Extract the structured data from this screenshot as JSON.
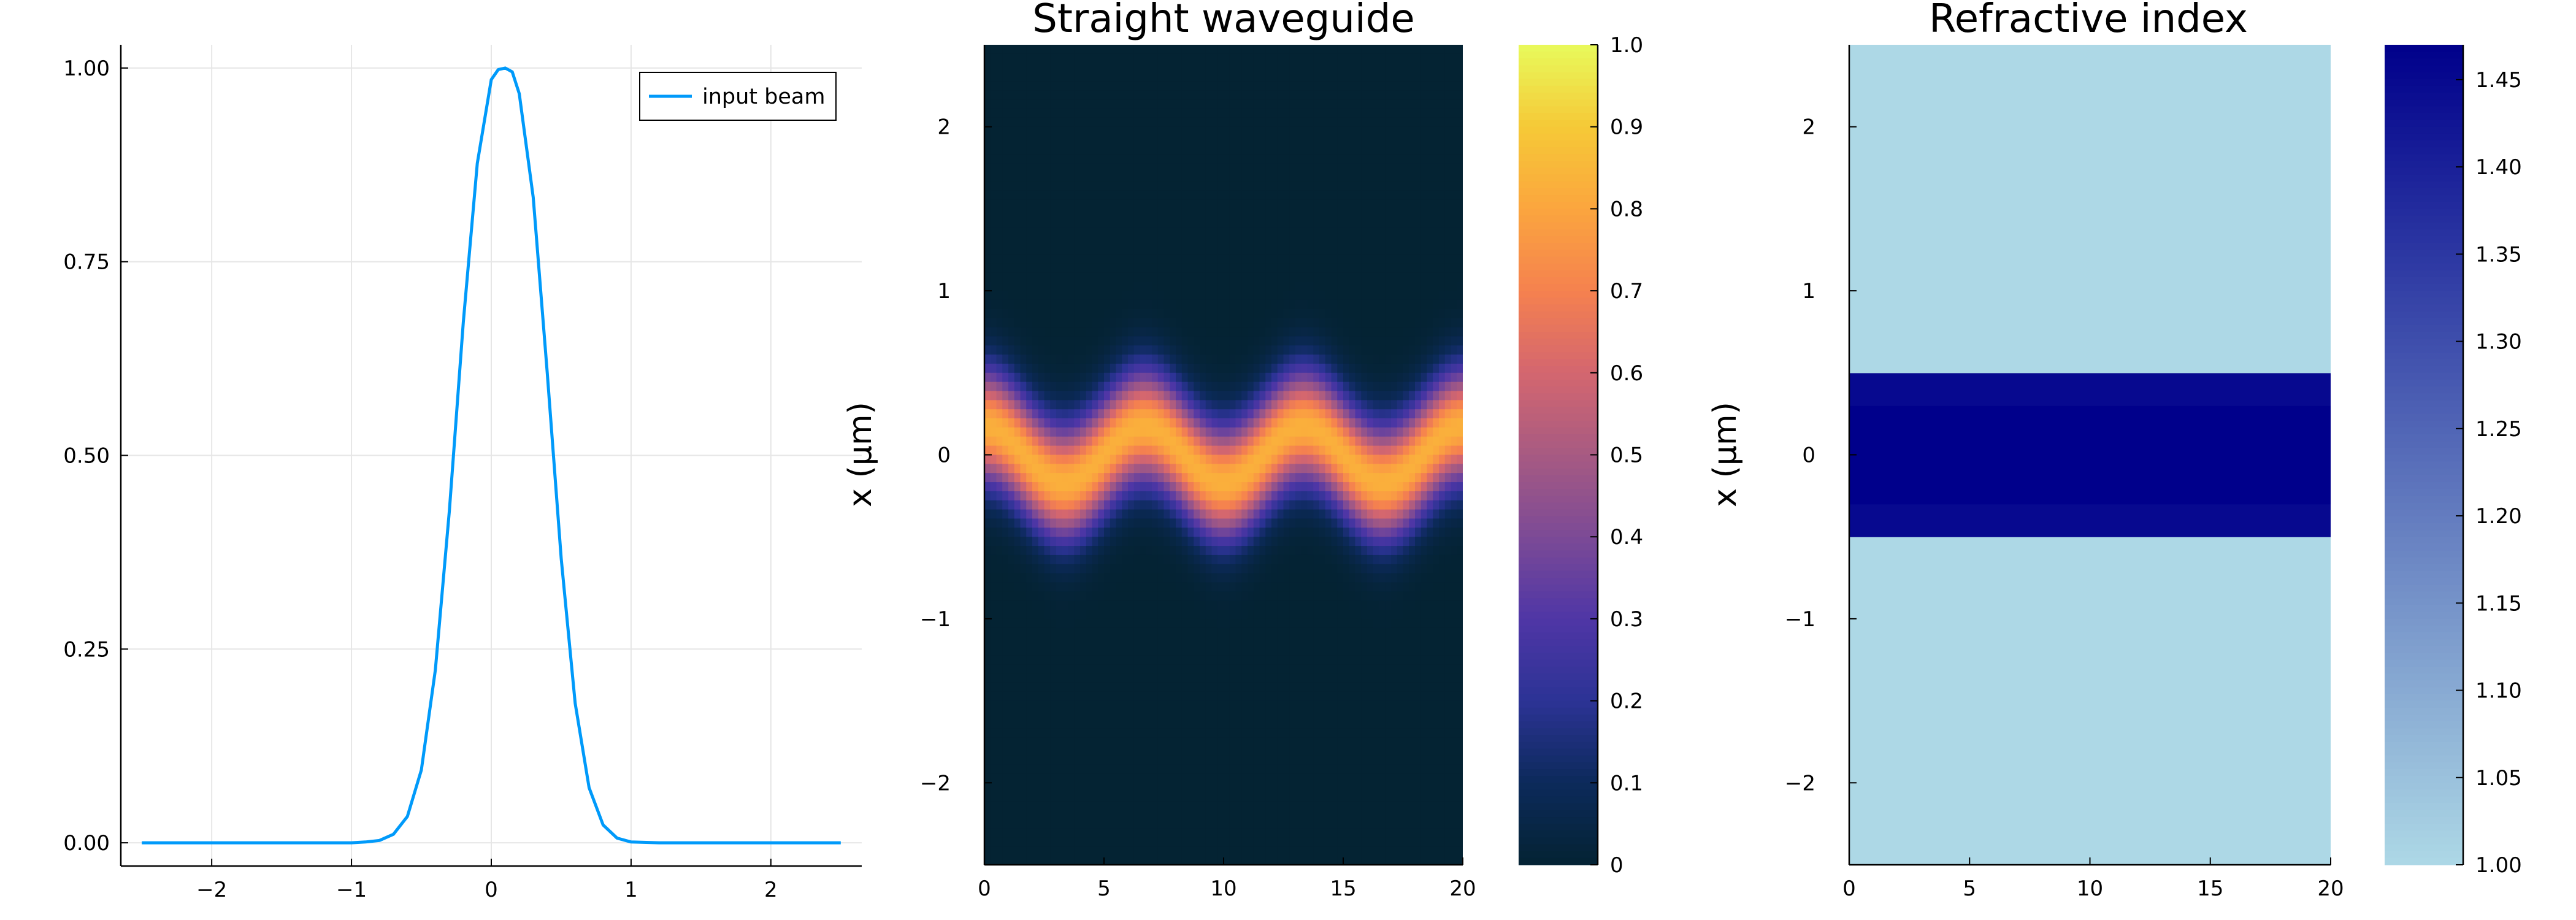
{
  "chart_data": [
    {
      "type": "line",
      "title": "",
      "xlabel": "",
      "ylabel": "",
      "xlim": [
        -2.65,
        2.65
      ],
      "ylim": [
        -0.03,
        1.03
      ],
      "xticks": [
        -2,
        -1,
        0,
        1,
        2
      ],
      "xtick_labels": [
        "−2",
        "−1",
        "0",
        "1",
        "2"
      ],
      "yticks": [
        0,
        0.25,
        0.5,
        0.75,
        1.0
      ],
      "ytick_labels": [
        "0.00",
        "0.25",
        "0.50",
        "0.75",
        "1.00"
      ],
      "grid": true,
      "legend": {
        "position": "top-right",
        "entries": [
          "input beam"
        ]
      },
      "series": [
        {
          "name": "input beam",
          "color": "#009AFA",
          "x": [
            -2.5,
            -1.0,
            -0.9,
            -0.8,
            -0.7,
            -0.6,
            -0.5,
            -0.4,
            -0.3,
            -0.2,
            -0.1,
            0.0,
            0.05,
            0.1,
            0.15,
            0.2,
            0.3,
            0.4,
            0.5,
            0.6,
            0.7,
            0.8,
            0.9,
            1.0,
            1.2,
            2.5
          ],
          "y": [
            0.0,
            0.0,
            0.001,
            0.003,
            0.011,
            0.034,
            0.094,
            0.223,
            0.428,
            0.672,
            0.877,
            0.985,
            0.998,
            1.0,
            0.995,
            0.967,
            0.833,
            0.607,
            0.367,
            0.18,
            0.071,
            0.023,
            0.006,
            0.001,
            0.0,
            0.0
          ]
        }
      ]
    },
    {
      "type": "heatmap",
      "title": "Straight waveguide",
      "xlabel": "",
      "ylabel": "x (µm)",
      "xlim": [
        0,
        20
      ],
      "ylim": [
        -2.5,
        2.5
      ],
      "xticks": [
        0,
        5,
        10,
        15,
        20
      ],
      "xtick_labels": [
        "0",
        "5",
        "10",
        "15",
        "20"
      ],
      "yticks": [
        -2,
        -1,
        0,
        1,
        2
      ],
      "ytick_labels": [
        "−2",
        "−1",
        "0",
        "1",
        "2"
      ],
      "colorbar": {
        "range": [
          0,
          1
        ],
        "ticks": [
          0,
          0.1,
          0.2,
          0.3,
          0.4,
          0.5,
          0.6,
          0.7,
          0.8,
          0.9,
          1.0
        ],
        "tick_labels": [
          "0",
          "0.1",
          "0.2",
          "0.3",
          "0.4",
          "0.5",
          "0.6",
          "0.7",
          "0.8",
          "0.9",
          "1.0"
        ],
        "colormap": "thermal",
        "stops": [
          "#042333",
          "#0c2a5b",
          "#2c3395",
          "#4f36a6",
          "#7c4a96",
          "#a75a82",
          "#d4666f",
          "#f5814f",
          "#fba63e",
          "#f6c937",
          "#e8fa5b"
        ]
      },
      "field": {
        "model": "gaussian beam oscillating about x = 0",
        "sigma_um": 0.24,
        "center_amplitude_um": 0.17,
        "period_um": 6.67,
        "peak_intensity": 0.83
      }
    },
    {
      "type": "heatmap",
      "title": "Refractive index",
      "xlabel": "",
      "ylabel": "x (µm)",
      "xlim": [
        0,
        20
      ],
      "ylim": [
        -2.5,
        2.5
      ],
      "xticks": [
        0,
        5,
        10,
        15,
        20
      ],
      "xtick_labels": [
        "0",
        "5",
        "10",
        "15",
        "20"
      ],
      "yticks": [
        -2,
        -1,
        0,
        1,
        2
      ],
      "ytick_labels": [
        "−2",
        "−1",
        "0",
        "1",
        "2"
      ],
      "colorbar": {
        "range": [
          1.0,
          1.47
        ],
        "ticks": [
          1.0,
          1.05,
          1.1,
          1.15,
          1.2,
          1.25,
          1.3,
          1.35,
          1.4,
          1.45
        ],
        "tick_labels": [
          "1.00",
          "1.05",
          "1.10",
          "1.15",
          "1.20",
          "1.25",
          "1.30",
          "1.35",
          "1.40",
          "1.45"
        ],
        "colormap": "light blue to dark blue",
        "stops": [
          "#add8e6",
          "#00008b"
        ]
      },
      "regions": [
        {
          "x_from": -2.5,
          "x_to": -0.5,
          "n": 1.0
        },
        {
          "x_from": -0.5,
          "x_to": -0.3,
          "n": 1.45
        },
        {
          "x_from": -0.3,
          "x_to": 0.3,
          "n": 1.47
        },
        {
          "x_from": 0.3,
          "x_to": 0.5,
          "n": 1.45
        },
        {
          "x_from": 0.5,
          "x_to": 2.5,
          "n": 1.0
        }
      ]
    }
  ]
}
